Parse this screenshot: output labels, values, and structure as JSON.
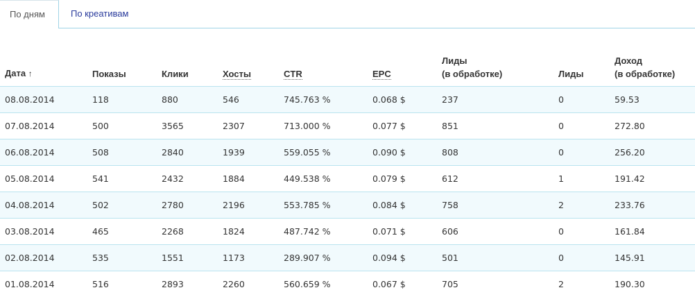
{
  "tabs": {
    "by_days": "По дням",
    "by_creatives": "По креативам"
  },
  "table": {
    "headers": {
      "date": "Дата",
      "sort_indicator": "↑",
      "shows": "Показы",
      "clicks": "Клики",
      "hosts": "Хосты",
      "ctr": "CTR",
      "epc": "EPC",
      "leads_processing_line1": "Лиды",
      "leads_processing_line2": "(в обработке)",
      "leads": "Лиды",
      "income_line1": "Доход",
      "income_line2": "(в обработке)"
    },
    "rows": [
      {
        "date": "08.08.2014",
        "shows": "118",
        "clicks": "880",
        "hosts": "546",
        "ctr": "745.763 %",
        "epc": "0.068 $",
        "leads_processing": "237",
        "leads": "0",
        "income": "59.53"
      },
      {
        "date": "07.08.2014",
        "shows": "500",
        "clicks": "3565",
        "hosts": "2307",
        "ctr": "713.000 %",
        "epc": "0.077 $",
        "leads_processing": "851",
        "leads": "0",
        "income": "272.80"
      },
      {
        "date": "06.08.2014",
        "shows": "508",
        "clicks": "2840",
        "hosts": "1939",
        "ctr": "559.055 %",
        "epc": "0.090 $",
        "leads_processing": "808",
        "leads": "0",
        "income": "256.20"
      },
      {
        "date": "05.08.2014",
        "shows": "541",
        "clicks": "2432",
        "hosts": "1884",
        "ctr": "449.538 %",
        "epc": "0.079 $",
        "leads_processing": "612",
        "leads": "1",
        "income": "191.42"
      },
      {
        "date": "04.08.2014",
        "shows": "502",
        "clicks": "2780",
        "hosts": "2196",
        "ctr": "553.785 %",
        "epc": "0.084 $",
        "leads_processing": "758",
        "leads": "2",
        "income": "233.76"
      },
      {
        "date": "03.08.2014",
        "shows": "465",
        "clicks": "2268",
        "hosts": "1824",
        "ctr": "487.742 %",
        "epc": "0.071 $",
        "leads_processing": "606",
        "leads": "0",
        "income": "161.84"
      },
      {
        "date": "02.08.2014",
        "shows": "535",
        "clicks": "1551",
        "hosts": "1173",
        "ctr": "289.907 %",
        "epc": "0.094 $",
        "leads_processing": "501",
        "leads": "0",
        "income": "145.91"
      },
      {
        "date": "01.08.2014",
        "shows": "516",
        "clicks": "2893",
        "hosts": "2260",
        "ctr": "560.659 %",
        "epc": "0.067 $",
        "leads_processing": "705",
        "leads": "2",
        "income": "190.30"
      }
    ]
  }
}
